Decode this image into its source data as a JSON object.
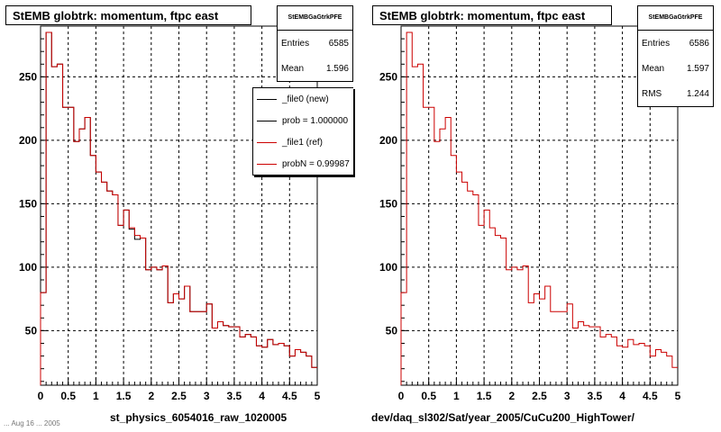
{
  "colors": {
    "new": "#000000",
    "ref": "#cc0000",
    "grid": "#000000"
  },
  "left_panel": {
    "title": "StEMB globtrk: momentum, ftpc east",
    "stats": {
      "name": "StEMBGaGtrkPFE",
      "rows": [
        {
          "label": "Entries",
          "value": "6585"
        },
        {
          "label": "Mean",
          "value": "1.596"
        }
      ]
    },
    "legend": [
      {
        "label": "_file0 (new)",
        "color": "#000000"
      },
      {
        "label": "prob = 1.000000",
        "color": "#000000"
      },
      {
        "label": "_file1 (ref)",
        "color": "#cc0000"
      },
      {
        "label": "probN = 0.99987",
        "color": "#cc0000"
      }
    ],
    "x_title": "st_physics_6054016_raw_1020005",
    "corner_text": "... Aug 16 ... 2005"
  },
  "right_panel": {
    "title": "StEMB globtrk: momentum, ftpc east",
    "stats": {
      "name": "StEMBGaGtrkPFE",
      "rows": [
        {
          "label": "Entries",
          "value": "6586"
        },
        {
          "label": "Mean",
          "value": "1.597"
        },
        {
          "label": "RMS",
          "value": "1.244"
        }
      ]
    },
    "x_title": "dev/daq_sl302/Sat/year_2005/CuCu200_HighTower/"
  },
  "chart_data": [
    {
      "type": "line",
      "title": "StEMB globtrk: momentum, ftpc east",
      "xlabel": "st_physics_6054016_raw_1020005",
      "ylabel": "",
      "xlim": [
        0,
        5
      ],
      "ylim": [
        7,
        290
      ],
      "grid": true,
      "legend_position": "top-right",
      "x_ticks": [
        "0",
        "0.5",
        "1",
        "1.5",
        "2",
        "2.5",
        "3",
        "3.5",
        "4",
        "4.5",
        "5"
      ],
      "y_ticks": [
        "50",
        "100",
        "150",
        "200",
        "250"
      ],
      "bin_edges": [
        0,
        0.1,
        0.2,
        0.3,
        0.4,
        0.5,
        0.6,
        0.7,
        0.8,
        0.9,
        1.0,
        1.1,
        1.2,
        1.3,
        1.4,
        1.5,
        1.6,
        1.7,
        1.8,
        1.9,
        2.0,
        2.1,
        2.2,
        2.3,
        2.4,
        2.5,
        2.6,
        2.7,
        2.8,
        2.9,
        3.0,
        3.1,
        3.2,
        3.3,
        3.4,
        3.5,
        3.6,
        3.7,
        3.8,
        3.9,
        4.0,
        4.1,
        4.2,
        4.3,
        4.4,
        4.5,
        4.6,
        4.7,
        4.8,
        4.9,
        5.0
      ],
      "series": [
        {
          "name": "_file0 (new)",
          "values": [
            80,
            285,
            258,
            260,
            226,
            226,
            199,
            209,
            218,
            188,
            175,
            167,
            160,
            157,
            133,
            145,
            130,
            122,
            123,
            98,
            100,
            98,
            101,
            72,
            79,
            75,
            85,
            65,
            65,
            65,
            71,
            52,
            57,
            54,
            53,
            53,
            45,
            47,
            45,
            38,
            37,
            43,
            39,
            40,
            38,
            30,
            35,
            33,
            30,
            21
          ]
        },
        {
          "name": "_file1 (ref)",
          "values": [
            80,
            285,
            258,
            260,
            226,
            226,
            199,
            209,
            218,
            188,
            175,
            167,
            160,
            157,
            133,
            145,
            131,
            125,
            123,
            98,
            100,
            98,
            101,
            72,
            79,
            75,
            85,
            65,
            65,
            65,
            71,
            52,
            57,
            54,
            53,
            53,
            45,
            47,
            45,
            38,
            37,
            43,
            39,
            40,
            38,
            30,
            35,
            33,
            30,
            21
          ]
        }
      ]
    },
    {
      "type": "line",
      "title": "StEMB globtrk: momentum, ftpc east",
      "xlabel": "dev/daq_sl302/Sat/year_2005/CuCu200_HighTower/",
      "ylabel": "",
      "xlim": [
        0,
        5
      ],
      "ylim": [
        7,
        290
      ],
      "grid": true,
      "x_ticks": [
        "0",
        "0.5",
        "1",
        "1.5",
        "2",
        "2.5",
        "3",
        "3.5",
        "4",
        "4.5",
        "5"
      ],
      "y_ticks": [
        "50",
        "100",
        "150",
        "200",
        "250"
      ],
      "bin_edges": [
        0,
        0.1,
        0.2,
        0.3,
        0.4,
        0.5,
        0.6,
        0.7,
        0.8,
        0.9,
        1.0,
        1.1,
        1.2,
        1.3,
        1.4,
        1.5,
        1.6,
        1.7,
        1.8,
        1.9,
        2.0,
        2.1,
        2.2,
        2.3,
        2.4,
        2.5,
        2.6,
        2.7,
        2.8,
        2.9,
        3.0,
        3.1,
        3.2,
        3.3,
        3.4,
        3.5,
        3.6,
        3.7,
        3.8,
        3.9,
        4.0,
        4.1,
        4.2,
        4.3,
        4.4,
        4.5,
        4.6,
        4.7,
        4.8,
        4.9,
        5.0
      ],
      "series": [
        {
          "name": "_file1 (ref)",
          "values": [
            80,
            285,
            258,
            260,
            226,
            226,
            199,
            209,
            218,
            188,
            175,
            167,
            160,
            157,
            133,
            145,
            131,
            125,
            123,
            98,
            100,
            98,
            101,
            72,
            79,
            75,
            85,
            65,
            65,
            65,
            71,
            52,
            57,
            54,
            53,
            53,
            45,
            47,
            45,
            38,
            37,
            43,
            39,
            40,
            38,
            30,
            35,
            33,
            30,
            21
          ]
        }
      ]
    }
  ]
}
